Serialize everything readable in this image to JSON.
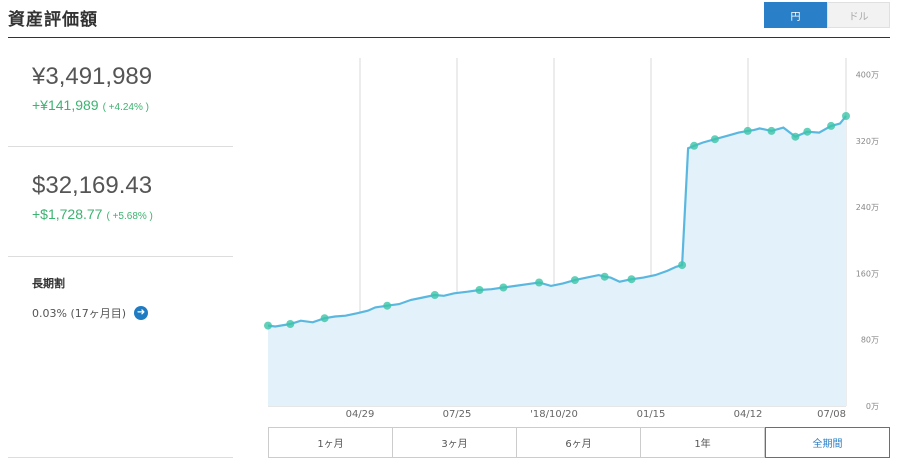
{
  "header": {
    "title": "資産評価額",
    "currency_toggle": [
      {
        "label": "円",
        "active": true
      },
      {
        "label": "ドル",
        "active": false
      }
    ]
  },
  "yen_summary": {
    "value": "¥3,491,989",
    "change": "+¥141,989",
    "change_pct": "( +4.24% )"
  },
  "usd_summary": {
    "value": "$32,169.43",
    "change": "+$1,728.77",
    "change_pct": "( +5.68% )"
  },
  "long_term": {
    "label": "長期割",
    "value": "0.03% (17ヶ月目)",
    "arrow_icon": "arrow-right-icon"
  },
  "ranges": [
    {
      "label": "1ヶ月",
      "active": false
    },
    {
      "label": "3ヶ月",
      "active": false
    },
    {
      "label": "6ヶ月",
      "active": false
    },
    {
      "label": "1年",
      "active": false
    },
    {
      "label": "全期間",
      "active": true
    }
  ],
  "colors": {
    "line": "#5ab8e0",
    "area": "#e3f1fa",
    "marker": "#3cc4a8",
    "accent": "#2a7fc9",
    "positive": "#3cb371"
  },
  "chart_data": {
    "type": "area",
    "x_ticks": [
      "04/29",
      "07/25",
      "'18/10/20",
      "01/15",
      "04/12",
      "07/08"
    ],
    "y_ticks": [
      "0万",
      "80万",
      "160万",
      "240万",
      "320万",
      "400万"
    ],
    "ylim": [
      0,
      420
    ],
    "series": [
      {
        "x": [
          0,
          5,
          15,
          22,
          30,
          38,
          45,
          52,
          60,
          67,
          72,
          80,
          88,
          96,
          104,
          112,
          118,
          125,
          134,
          142,
          150,
          158,
          166,
          174,
          182,
          190,
          198,
          206,
          214,
          222,
          226,
          230,
          236,
          244,
          252,
          260,
          268,
          274,
          278,
          282,
          286,
          292,
          300,
          308,
          316,
          322,
          326,
          328,
          330,
          338,
          346,
          354,
          362,
          370,
          378,
          384,
          388
        ],
        "values": [
          97,
          96,
          99,
          103,
          101,
          106,
          108,
          109,
          112,
          115,
          119,
          121,
          123,
          128,
          131,
          134,
          133,
          136,
          138,
          140,
          141,
          143,
          145,
          147,
          149,
          145,
          148,
          152,
          155,
          158,
          156,
          155,
          150,
          153,
          155,
          158,
          163,
          168,
          170,
          311,
          314,
          318,
          322,
          326,
          330,
          332,
          333,
          334,
          335,
          332,
          336,
          325,
          331,
          330,
          338,
          341,
          350
        ]
      }
    ],
    "markers": [
      0,
      5,
      15,
      22,
      30,
      38,
      45,
      52,
      60,
      67,
      72,
      80,
      88,
      96,
      104,
      112,
      118,
      125,
      134,
      142,
      150,
      158,
      166,
      174,
      182,
      190,
      198,
      206,
      214,
      222,
      226,
      230,
      236,
      244,
      252,
      260,
      268,
      274,
      278,
      282,
      286,
      292,
      300,
      308,
      316,
      322,
      326,
      328,
      330,
      338,
      346,
      354,
      362,
      370,
      378,
      384,
      388
    ],
    "marker_indices": [
      0,
      2,
      5,
      11,
      15,
      19,
      21,
      24,
      27,
      30,
      33,
      38,
      40,
      42,
      45,
      49,
      51,
      52,
      54,
      56
    ]
  }
}
